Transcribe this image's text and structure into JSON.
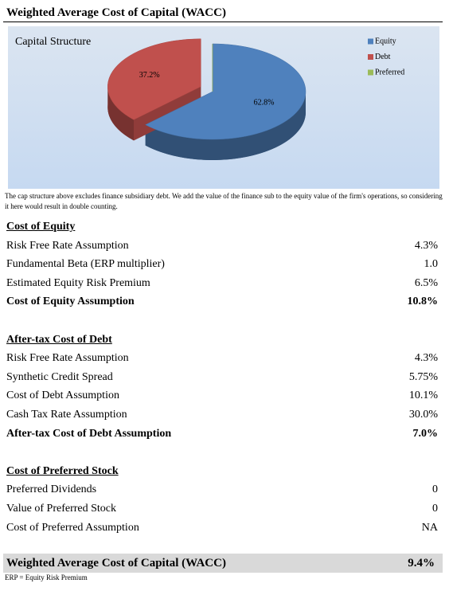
{
  "header": {
    "title": "Weighted Average Cost of Capital (WACC)"
  },
  "chart_data": {
    "type": "pie",
    "title": "Capital Structure",
    "categories": [
      "Equity",
      "Debt",
      "Preferred"
    ],
    "values": [
      62.8,
      37.2,
      0
    ],
    "value_labels": [
      "62.8%",
      "37.2%",
      null
    ],
    "colors": [
      "#4f81bd",
      "#c0504d",
      "#9bbb59"
    ],
    "exploded": [
      false,
      true,
      false
    ],
    "legend": "top-right"
  },
  "note": "The cap structure above excludes finance subsidiary debt. We add the value of the finance sub to the equity value of the firm's operations, so considering it here would result in double counting.",
  "sections": [
    {
      "title": "Cost of Equity",
      "rows": [
        [
          "Risk Free Rate Assumption",
          "4.3%"
        ],
        [
          "Fundamental Beta (ERP multiplier)",
          "1.0"
        ],
        [
          "Estimated Equity Risk Premium",
          "6.5%"
        ]
      ],
      "total": [
        "Cost of Equity Assumption",
        "10.8%"
      ]
    },
    {
      "title": "After-tax Cost of Debt",
      "rows": [
        [
          "Risk Free Rate Assumption",
          "4.3%"
        ],
        [
          "Synthetic Credit Spread",
          "5.75%"
        ],
        [
          "Cost of Debt Assumption",
          "10.1%"
        ],
        [
          "Cash Tax Rate Assumption",
          "30.0%"
        ]
      ],
      "total": [
        "After-tax Cost of Debt Assumption",
        "7.0%"
      ]
    },
    {
      "title": "Cost of Preferred Stock",
      "rows": [
        [
          "Preferred Dividends",
          "0"
        ],
        [
          "Value of Preferred Stock",
          "0"
        ],
        [
          "Cost of Preferred Assumption",
          "NA"
        ]
      ]
    }
  ],
  "wacc": [
    "Weighted Average Cost of Capital (WACC)",
    "9.4%"
  ],
  "footnote": "ERP = Equity Risk Premium"
}
